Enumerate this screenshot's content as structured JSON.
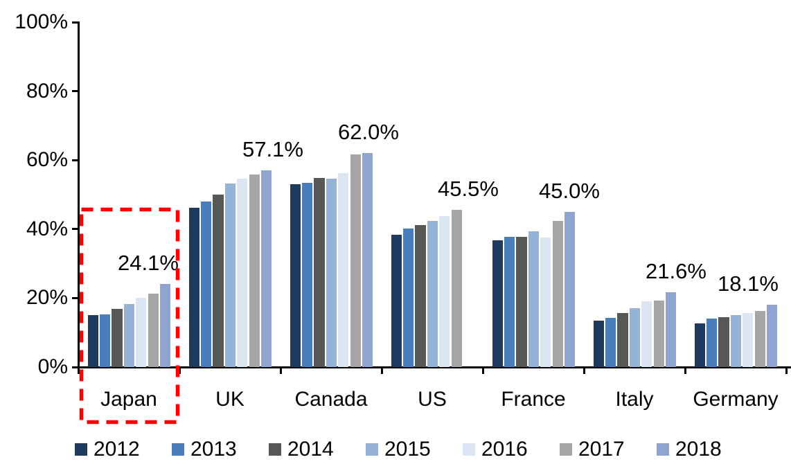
{
  "chart_data": {
    "type": "bar",
    "title": "",
    "xlabel": "",
    "ylabel": "",
    "ylim": [
      0,
      100
    ],
    "grid": false,
    "legend_position": "bottom",
    "yticks": [
      "0%",
      "20%",
      "40%",
      "60%",
      "80%",
      "100%"
    ],
    "ytick_values": [
      0,
      20,
      40,
      60,
      80,
      100
    ],
    "categories": [
      "Japan",
      "UK",
      "Canada",
      "US",
      "France",
      "Italy",
      "Germany"
    ],
    "series": [
      {
        "name": "2012",
        "color": "#1F3A5F",
        "values": [
          15.0,
          46.2,
          53.0,
          38.4,
          36.7,
          13.4,
          12.6
        ]
      },
      {
        "name": "2013",
        "color": "#4A7EBB",
        "values": [
          15.2,
          47.9,
          53.5,
          40.2,
          37.7,
          14.3,
          14.1
        ]
      },
      {
        "name": "2014",
        "color": "#575757",
        "values": [
          16.9,
          49.9,
          54.9,
          41.1,
          37.7,
          15.6,
          14.5
        ]
      },
      {
        "name": "2015",
        "color": "#95B3D7",
        "values": [
          18.2,
          53.3,
          54.6,
          42.3,
          39.3,
          17.0,
          15.0
        ]
      },
      {
        "name": "2016",
        "color": "#DCE6F2",
        "values": [
          20.0,
          54.7,
          56.2,
          43.7,
          37.5,
          19.1,
          15.6
        ]
      },
      {
        "name": "2017",
        "color": "#A6A6A6",
        "values": [
          21.3,
          55.8,
          61.7,
          45.5,
          42.4,
          19.3,
          16.2
        ]
      },
      {
        "name": "2018",
        "color": "#8FA4CE",
        "values": [
          24.1,
          57.1,
          62.0,
          null,
          45.0,
          21.6,
          18.1
        ]
      }
    ],
    "annotations": [
      "24.1%",
      "57.1%",
      "62.0%",
      "45.5%",
      "45.0%",
      "21.6%",
      "18.1%"
    ],
    "highlight": {
      "category": "Japan",
      "style": "red-dashed-box",
      "color": "#FF0000"
    }
  }
}
